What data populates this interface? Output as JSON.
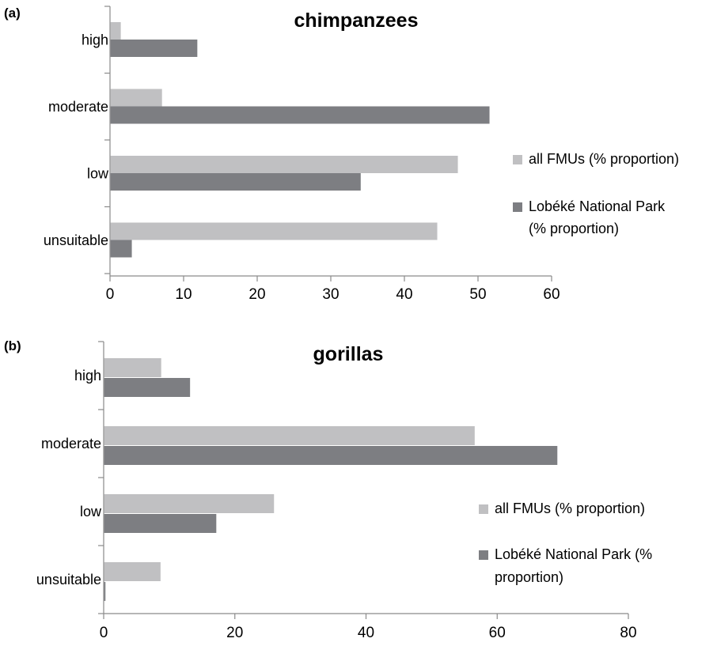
{
  "chart_data": [
    {
      "panel_label": "(a)",
      "type": "bar",
      "orientation": "horizontal",
      "title": "chimpanzees",
      "categories": [
        "high",
        "moderate",
        "low",
        "unsuitable"
      ],
      "xlim": [
        0,
        60
      ],
      "xticks": [
        "0",
        "10",
        "20",
        "30",
        "40",
        "50",
        "60"
      ],
      "series": [
        {
          "name": "all FMUs (% proportion)",
          "values": [
            1.4,
            7.0,
            47.2,
            44.4
          ]
        },
        {
          "name": "Lobéké National Park (% proportion)",
          "values": [
            11.8,
            51.5,
            34.0,
            2.9
          ]
        }
      ],
      "legend_lines": [
        [
          "all FMUs (% proportion)"
        ],
        [
          "Lobéké National Park",
          "(% proportion)"
        ]
      ],
      "legend": "right"
    },
    {
      "panel_label": "(b)",
      "type": "bar",
      "orientation": "horizontal",
      "title": "gorillas",
      "categories": [
        "high",
        "moderate",
        "low",
        "unsuitable"
      ],
      "xlim": [
        0,
        80
      ],
      "xticks": [
        "0",
        "20",
        "40",
        "60",
        "80"
      ],
      "series": [
        {
          "name": "all FMUs (% proportion)",
          "values": [
            8.7,
            56.5,
            25.9,
            8.6
          ]
        },
        {
          "name": "Lobéké National Park (% proportion)",
          "values": [
            13.1,
            69.1,
            17.1,
            0.2
          ]
        }
      ],
      "legend_lines": [
        [
          "all FMUs (% proportion)"
        ],
        [
          "Lobéké National Park (%",
          "proportion)"
        ]
      ],
      "legend": "right"
    }
  ],
  "colors": {
    "series_light": "#c0c0c2",
    "series_dark": "#7d7e82",
    "axis": "#8a8a8a"
  }
}
